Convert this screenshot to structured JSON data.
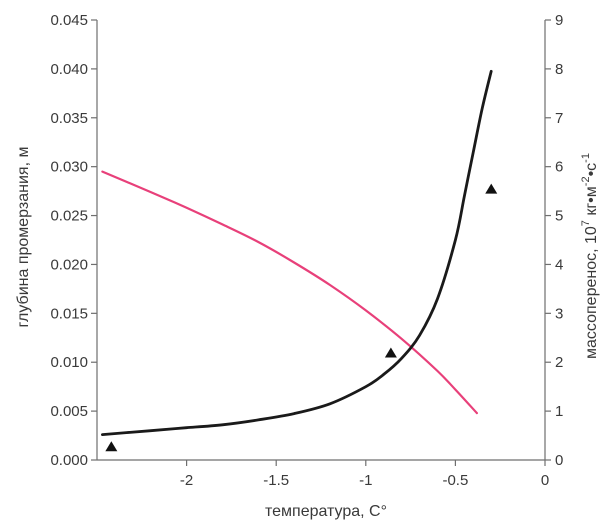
{
  "chart_data": {
    "type": "line",
    "title": "",
    "xlabel": "температура, С°",
    "ylabel_left": "глубина промерзания, м",
    "ylabel_right_parts": [
      "массоперенос, 10",
      "7",
      " кг•м",
      "-2",
      "•c",
      "-1"
    ],
    "xlim": [
      -2.5,
      0
    ],
    "ylim_left": [
      0,
      0.045
    ],
    "ylim_right": [
      0,
      9
    ],
    "x_ticks": [
      {
        "v": -2,
        "label": "-2"
      },
      {
        "v": -1.5,
        "label": "-1.5"
      },
      {
        "v": -1,
        "label": "-1"
      },
      {
        "v": -0.5,
        "label": "-0.5"
      },
      {
        "v": 0,
        "label": "0"
      }
    ],
    "y_left_ticks": [
      {
        "v": 0,
        "label": "0.000"
      },
      {
        "v": 0.005,
        "label": "0.005"
      },
      {
        "v": 0.01,
        "label": "0.010"
      },
      {
        "v": 0.015,
        "label": "0.015"
      },
      {
        "v": 0.02,
        "label": "0.020"
      },
      {
        "v": 0.025,
        "label": "0.025"
      },
      {
        "v": 0.03,
        "label": "0.030"
      },
      {
        "v": 0.035,
        "label": "0.035"
      },
      {
        "v": 0.04,
        "label": "0.040"
      },
      {
        "v": 0.045,
        "label": "0.045"
      }
    ],
    "y_right_ticks": [
      {
        "v": 0,
        "label": "0"
      },
      {
        "v": 1,
        "label": "1"
      },
      {
        "v": 2,
        "label": "2"
      },
      {
        "v": 3,
        "label": "3"
      },
      {
        "v": 4,
        "label": "4"
      },
      {
        "v": 5,
        "label": "5"
      },
      {
        "v": 6,
        "label": "6"
      },
      {
        "v": 7,
        "label": "7"
      },
      {
        "v": 8,
        "label": "8"
      },
      {
        "v": 9,
        "label": "9"
      }
    ],
    "series": [
      {
        "axis": "left",
        "kind": "line",
        "color": "#e8407a",
        "x": [
          -2.47,
          -2.2,
          -2.0,
          -1.8,
          -1.6,
          -1.4,
          -1.2,
          -1.0,
          -0.8,
          -0.6,
          -0.5,
          -0.38
        ],
        "y": [
          0.0295,
          0.0274,
          0.0258,
          0.0241,
          0.0223,
          0.0202,
          0.0179,
          0.0153,
          0.0124,
          0.0091,
          0.0072,
          0.0048
        ]
      },
      {
        "axis": "right",
        "kind": "line",
        "color": "#1a1a1a",
        "x": [
          -2.47,
          -2.2,
          -2.0,
          -1.8,
          -1.6,
          -1.4,
          -1.2,
          -1.0,
          -0.9,
          -0.8,
          -0.7,
          -0.6,
          -0.5,
          -0.45,
          -0.4,
          -0.35,
          -0.3
        ],
        "y": [
          0.52,
          0.6,
          0.66,
          0.72,
          0.82,
          0.95,
          1.15,
          1.5,
          1.75,
          2.08,
          2.55,
          3.3,
          4.5,
          5.4,
          6.3,
          7.2,
          7.95
        ]
      },
      {
        "axis": "right",
        "kind": "markers",
        "marker": "triangle",
        "color": "#111111",
        "x": [
          -2.42,
          -0.86,
          -0.3
        ],
        "y": [
          0.28,
          2.2,
          5.55
        ]
      }
    ]
  }
}
